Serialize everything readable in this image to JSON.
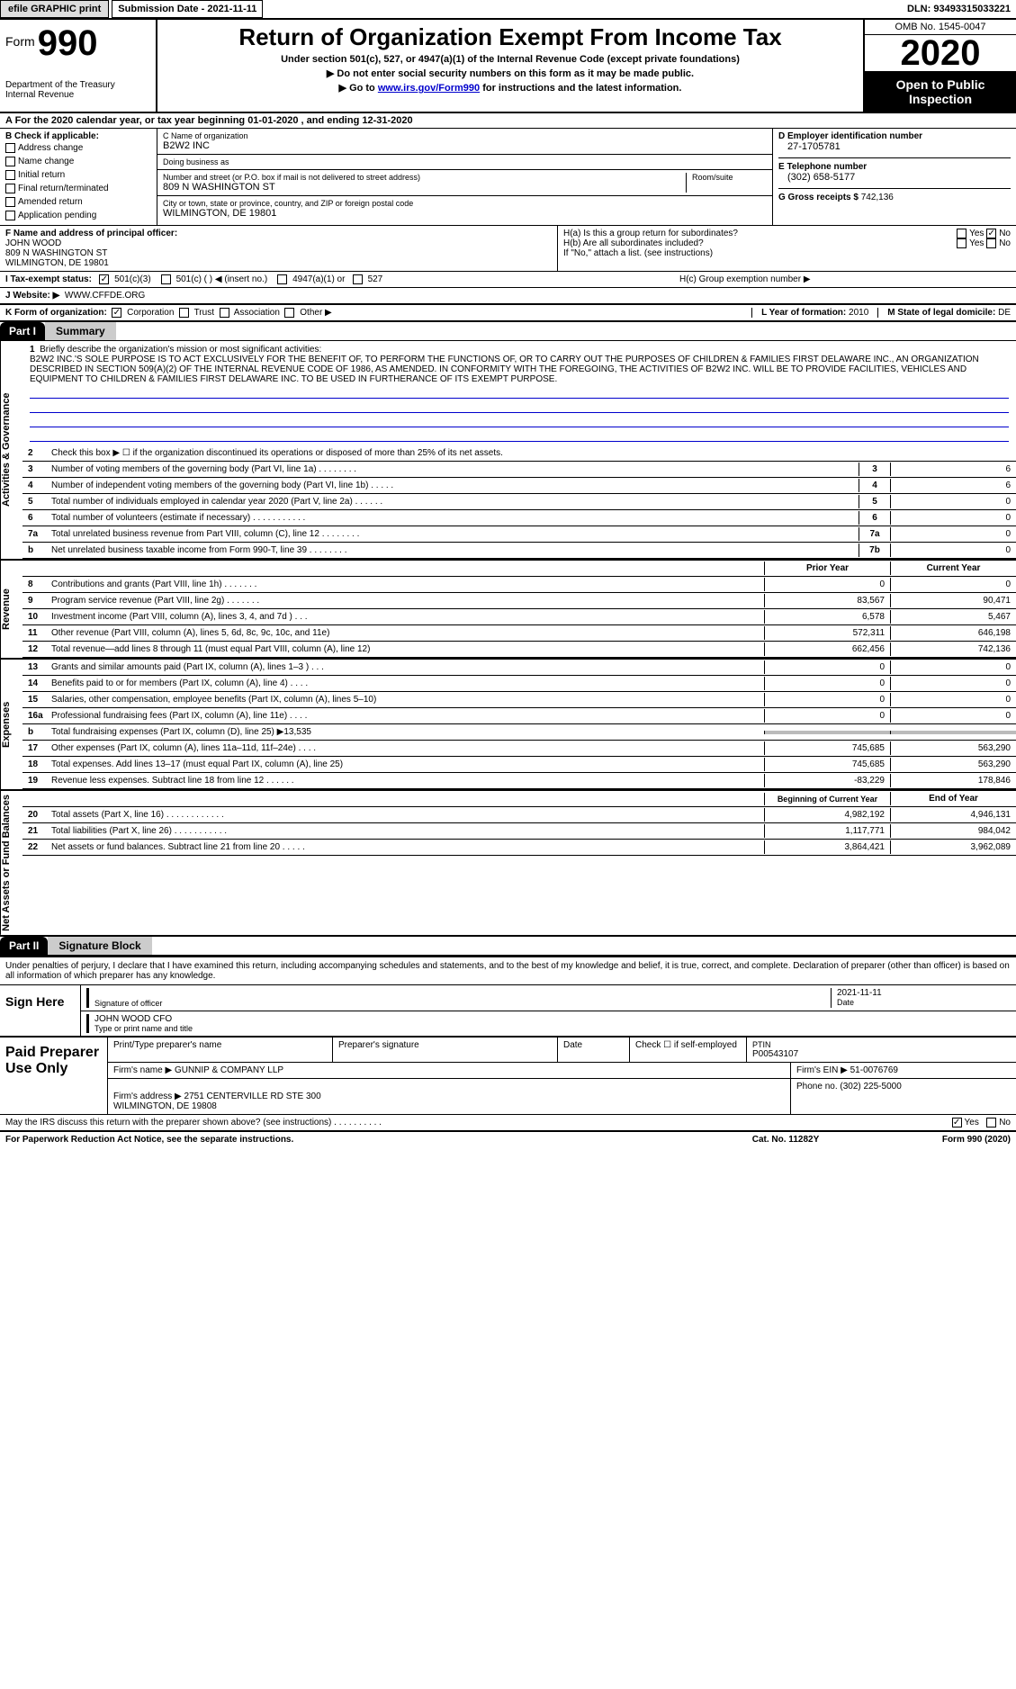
{
  "topbar": {
    "efile": "efile GRAPHIC print",
    "submission_label": "Submission Date - ",
    "submission_date": "2021-11-11",
    "dln_label": "DLN: ",
    "dln": "93493315033221"
  },
  "header": {
    "form_word": "Form",
    "form_num": "990",
    "dept": "Department of the Treasury\nInternal Revenue",
    "title": "Return of Organization Exempt From Income Tax",
    "sub1": "Under section 501(c), 527, or 4947(a)(1) of the Internal Revenue Code (except private foundations)",
    "sub2": "▶ Do not enter social security numbers on this form as it may be made public.",
    "sub3_pre": "▶ Go to ",
    "sub3_link": "www.irs.gov/Form990",
    "sub3_post": " for instructions and the latest information.",
    "omb": "OMB No. 1545-0047",
    "year": "2020",
    "open": "Open to Public Inspection"
  },
  "row_a": "A For the 2020 calendar year, or tax year beginning 01-01-2020   , and ending 12-31-2020",
  "col_b": {
    "title": "B Check if applicable:",
    "items": [
      "Address change",
      "Name change",
      "Initial return",
      "Final return/terminated",
      "Amended return",
      "Application pending"
    ]
  },
  "col_c": {
    "name_lbl": "C Name of organization",
    "name": "B2W2 INC",
    "dba_lbl": "Doing business as",
    "dba": "",
    "addr_lbl": "Number and street (or P.O. box if mail is not delivered to street address)",
    "addr": "809 N WASHINGTON ST",
    "room_lbl": "Room/suite",
    "city_lbl": "City or town, state or province, country, and ZIP or foreign postal code",
    "city": "WILMINGTON, DE  19801"
  },
  "col_d": {
    "ein_lbl": "D Employer identification number",
    "ein": "27-1705781",
    "tel_lbl": "E Telephone number",
    "tel": "(302) 658-5177",
    "gross_lbl": "G Gross receipts $ ",
    "gross": "742,136"
  },
  "row_f": {
    "lbl": "F  Name and address of principal officer:",
    "name": "JOHN WOOD",
    "addr1": "809 N WASHINGTON ST",
    "addr2": "WILMINGTON, DE  19801",
    "ha": "H(a)  Is this a group return for subordinates?",
    "ha_yes": "Yes",
    "ha_no": "No",
    "hb": "H(b)  Are all subordinates included?",
    "hb_note": "If \"No,\" attach a list. (see instructions)",
    "hc": "H(c)  Group exemption number ▶"
  },
  "row_i": {
    "lbl": "I   Tax-exempt status:",
    "opts": [
      "501(c)(3)",
      "501(c) (  ) ◀ (insert no.)",
      "4947(a)(1) or",
      "527"
    ]
  },
  "row_j": {
    "lbl": "J   Website: ▶",
    "val": "WWW.CFFDE.ORG"
  },
  "row_k": {
    "lbl": "K Form of organization:",
    "opts": [
      "Corporation",
      "Trust",
      "Association",
      "Other ▶"
    ],
    "l_lbl": "L Year of formation: ",
    "l_val": "2010",
    "m_lbl": "M State of legal domicile: ",
    "m_val": "DE"
  },
  "part1": {
    "hdr": "Part I",
    "title": "Summary",
    "q1_lbl": "1",
    "q1_txt": "Briefly describe the organization's mission or most significant activities:",
    "q1_mission": "B2W2 INC.'S SOLE PURPOSE IS TO ACT EXCLUSIVELY FOR THE BENEFIT OF, TO PERFORM THE FUNCTIONS OF, OR TO CARRY OUT THE PURPOSES OF CHILDREN & FAMILIES FIRST DELAWARE INC., AN ORGANIZATION DESCRIBED IN SECTION 509(A)(2) OF THE INTERNAL REVENUE CODE OF 1986, AS AMENDED. IN CONFORMITY WITH THE FOREGOING, THE ACTIVITIES OF B2W2 INC. WILL BE TO PROVIDE FACILITIES, VEHICLES AND EQUIPMENT TO CHILDREN & FAMILIES FIRST DELAWARE INC. TO BE USED IN FURTHERANCE OF ITS EXEMPT PURPOSE.",
    "q2": "Check this box ▶ ☐  if the organization discontinued its operations or disposed of more than 25% of its net assets.",
    "v_gov": "Activities & Governance",
    "v_rev": "Revenue",
    "v_exp": "Expenses",
    "v_net": "Net Assets or Fund Balances",
    "rows_gov": [
      {
        "n": "3",
        "t": "Number of voting members of the governing body (Part VI, line 1a)  .    .    .    .    .    .    .    .",
        "b": "3",
        "v": "6"
      },
      {
        "n": "4",
        "t": "Number of independent voting members of the governing body (Part VI, line 1b)    .    .    .    .    .",
        "b": "4",
        "v": "6"
      },
      {
        "n": "5",
        "t": "Total number of individuals employed in calendar year 2020 (Part V, line 2a)   .    .    .    .    .    .",
        "b": "5",
        "v": "0"
      },
      {
        "n": "6",
        "t": "Total number of volunteers (estimate if necessary)   .    .    .    .    .    .    .    .    .    .    .",
        "b": "6",
        "v": "0"
      },
      {
        "n": "7a",
        "t": "Total unrelated business revenue from Part VIII, column (C), line 12   .    .    .    .    .    .    .    .",
        "b": "7a",
        "v": "0"
      },
      {
        "n": "b",
        "t": "Net unrelated business taxable income from Form 990-T, line 39   .    .    .    .    .    .    .    .",
        "b": "7b",
        "v": "0"
      }
    ],
    "col_hdr": {
      "prior": "Prior Year",
      "current": "Current Year"
    },
    "rows_rev": [
      {
        "n": "8",
        "t": "Contributions and grants (Part VIII, line 1h)   .    .    .    .    .    .    .",
        "p": "0",
        "c": "0"
      },
      {
        "n": "9",
        "t": "Program service revenue (Part VIII, line 2g)   .    .    .    .    .    .    .",
        "p": "83,567",
        "c": "90,471"
      },
      {
        "n": "10",
        "t": "Investment income (Part VIII, column (A), lines 3, 4, and 7d )   .    .    .",
        "p": "6,578",
        "c": "5,467"
      },
      {
        "n": "11",
        "t": "Other revenue (Part VIII, column (A), lines 5, 6d, 8c, 9c, 10c, and 11e)",
        "p": "572,311",
        "c": "646,198"
      },
      {
        "n": "12",
        "t": "Total revenue—add lines 8 through 11 (must equal Part VIII, column (A), line 12)",
        "p": "662,456",
        "c": "742,136"
      }
    ],
    "rows_exp": [
      {
        "n": "13",
        "t": "Grants and similar amounts paid (Part IX, column (A), lines 1–3 )   .    .    .",
        "p": "0",
        "c": "0"
      },
      {
        "n": "14",
        "t": "Benefits paid to or for members (Part IX, column (A), line 4)   .    .    .    .",
        "p": "0",
        "c": "0"
      },
      {
        "n": "15",
        "t": "Salaries, other compensation, employee benefits (Part IX, column (A), lines 5–10)",
        "p": "0",
        "c": "0"
      },
      {
        "n": "16a",
        "t": "Professional fundraising fees (Part IX, column (A), line 11e)   .    .    .    .",
        "p": "0",
        "c": "0"
      },
      {
        "n": "b",
        "t": "Total fundraising expenses (Part IX, column (D), line 25) ▶13,535",
        "p": "",
        "c": "",
        "gray": true
      },
      {
        "n": "17",
        "t": "Other expenses (Part IX, column (A), lines 11a–11d, 11f–24e)   .    .    .    .",
        "p": "745,685",
        "c": "563,290"
      },
      {
        "n": "18",
        "t": "Total expenses. Add lines 13–17 (must equal Part IX, column (A), line 25)",
        "p": "745,685",
        "c": "563,290"
      },
      {
        "n": "19",
        "t": "Revenue less expenses. Subtract line 18 from line 12   .    .    .    .    .    .",
        "p": "-83,229",
        "c": "178,846"
      }
    ],
    "col_hdr2": {
      "begin": "Beginning of Current Year",
      "end": "End of Year"
    },
    "rows_net": [
      {
        "n": "20",
        "t": "Total assets (Part X, line 16)   .    .    .    .    .    .    .    .    .    .    .    .",
        "p": "4,982,192",
        "c": "4,946,131"
      },
      {
        "n": "21",
        "t": "Total liabilities (Part X, line 26)   .    .    .    .    .    .    .    .    .    .    .",
        "p": "1,117,771",
        "c": "984,042"
      },
      {
        "n": "22",
        "t": "Net assets or fund balances. Subtract line 21 from line 20   .    .    .    .    .",
        "p": "3,864,421",
        "c": "3,962,089"
      }
    ]
  },
  "part2": {
    "hdr": "Part II",
    "title": "Signature Block",
    "decl": "Under penalties of perjury, I declare that I have examined this return, including accompanying schedules and statements, and to the best of my knowledge and belief, it is true, correct, and complete. Declaration of preparer (other than officer) is based on all information of which preparer has any knowledge.",
    "sign_here": "Sign Here",
    "sig_officer": "Signature of officer",
    "sig_date": "2021-11-11",
    "date_lbl": "Date",
    "officer_name": "JOHN WOOD CFO",
    "name_title_lbl": "Type or print name and title",
    "paid": "Paid Preparer Use Only",
    "prep_name_lbl": "Print/Type preparer's name",
    "prep_sig_lbl": "Preparer's signature",
    "prep_date_lbl": "Date",
    "check_lbl": "Check ☐ if self-employed",
    "ptin_lbl": "PTIN",
    "ptin": "P00543107",
    "firm_name_lbl": "Firm's name    ▶ ",
    "firm_name": "GUNNIP & COMPANY LLP",
    "firm_ein_lbl": "Firm's EIN ▶ ",
    "firm_ein": "51-0076769",
    "firm_addr_lbl": "Firm's address ▶ ",
    "firm_addr": "2751 CENTERVILLE RD STE 300\nWILMINGTON, DE  19808",
    "phone_lbl": "Phone no. ",
    "phone": "(302) 225-5000",
    "discuss": "May the IRS discuss this return with the preparer shown above? (see instructions)   .    .    .    .    .    .    .    .    .    .",
    "discuss_yes": "Yes",
    "discuss_no": "No"
  },
  "footer": {
    "paperwork": "For Paperwork Reduction Act Notice, see the separate instructions.",
    "cat": "Cat. No. 11282Y",
    "form": "Form 990 (2020)"
  }
}
